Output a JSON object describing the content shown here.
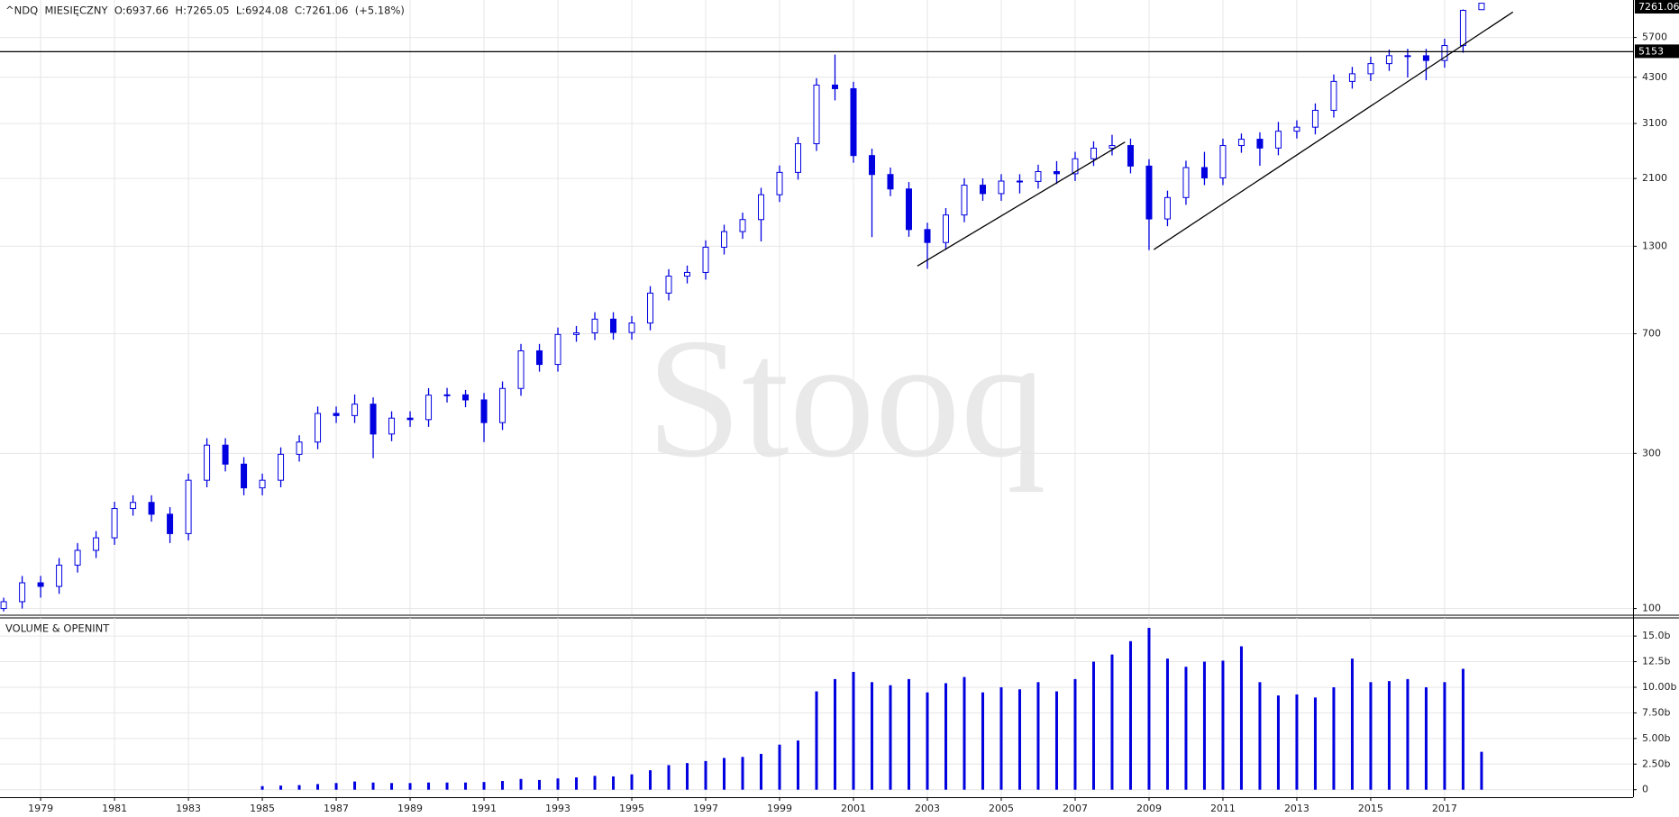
{
  "chart_data": [
    {
      "type": "candlestick",
      "title": "^NDQ  MIESIĘCZNY  O:6937.66  H:7265.05  L:6924.08  C:7261.06  (+5.18%)",
      "watermark": "Stooq",
      "color": "#0000e0",
      "log_scale": true,
      "grid": true,
      "x": [
        1978,
        1978.5,
        1979,
        1979.5,
        1980,
        1980.5,
        1981,
        1981.5,
        1982,
        1982.5,
        1983,
        1983.5,
        1984,
        1984.5,
        1985,
        1985.5,
        1986,
        1986.5,
        1987,
        1987.5,
        1988,
        1988.5,
        1989,
        1989.5,
        1990,
        1990.5,
        1991,
        1991.5,
        1992,
        1992.5,
        1993,
        1993.5,
        1994,
        1994.5,
        1995,
        1995.5,
        1996,
        1996.5,
        1997,
        1997.5,
        1998,
        1998.5,
        1999,
        1999.5,
        2000,
        2000.5,
        2001,
        2001.5,
        2002,
        2002.5,
        2003,
        2003.5,
        2004,
        2004.5,
        2005,
        2005.5,
        2006,
        2006.5,
        2007,
        2007.5,
        2008,
        2008.5,
        2009,
        2009.5,
        2010,
        2010.5,
        2011,
        2011.5,
        2012,
        2012.5,
        2013,
        2013.5,
        2014,
        2014.5,
        2015,
        2015.5,
        2016,
        2016.5,
        2017,
        2017.5,
        2018
      ],
      "open": [
        100,
        105,
        120,
        117,
        136,
        151,
        165,
        203,
        212,
        195,
        170,
        248,
        318,
        278,
        235,
        248,
        298,
        325,
        398,
        392,
        425,
        344,
        385,
        381,
        453,
        454,
        438,
        373,
        475,
        620,
        563,
        696,
        704,
        776,
        706,
        755,
        933,
        1052,
        1080,
        1291,
        1442,
        1570,
        1872,
        2193,
        2686,
        4069,
        3966,
        2470,
        2160,
        1950,
        1463,
        1335,
        1622,
        2003,
        1887,
        2062,
        2057,
        2205,
        2172,
        2415,
        2603,
        2652,
        2293,
        1577,
        1835,
        2269,
        2109,
        2652,
        2773,
        2605,
        2935,
        3020,
        3403,
        4176,
        4408,
        4736,
        5009,
        5007,
        4843,
        5383,
        6937.66
      ],
      "high": [
        108,
        126,
        126,
        143,
        159,
        173,
        213,
        223,
        223,
        205,
        260,
        334,
        334,
        292,
        260,
        313,
        341,
        418,
        418,
        455,
        446,
        404,
        404,
        476,
        477,
        470,
        460,
        499,
        651,
        651,
        731,
        739,
        815,
        815,
        793,
        980,
        1105,
        1134,
        1356,
        1514,
        1649,
        1966,
        2303,
        2820,
        4272,
        5048,
        4164,
        2594,
        2268,
        2048,
        1536,
        1703,
        2103,
        2103,
        2165,
        2165,
        2315,
        2375,
        2536,
        2733,
        2861,
        2785,
        2408,
        1927,
        2382,
        2535,
        2785,
        2887,
        2912,
        3134,
        3171,
        3573,
        4385,
        4628,
        4973,
        5231,
        5259,
        5257,
        5652,
        6950,
        7265.05
      ],
      "low": [
        98,
        100,
        108,
        111,
        129,
        143,
        157,
        193,
        185,
        159,
        162,
        236,
        264,
        223,
        223,
        236,
        283,
        309,
        372,
        372,
        290,
        327,
        362,
        362,
        430,
        416,
        325,
        354,
        451,
        535,
        535,
        661,
        669,
        671,
        671,
        717,
        886,
        999,
        1026,
        1226,
        1370,
        1345,
        1778,
        2083,
        2552,
        3650,
        2347,
        1387,
        1853,
        1390,
        1108,
        1268,
        1541,
        1793,
        1793,
        1889,
        1954,
        2020,
        2063,
        2294,
        2473,
        2178,
        1265,
        1498,
        1743,
        2004,
        2004,
        2520,
        2298,
        2475,
        2788,
        2869,
        3233,
        3967,
        4188,
        4499,
        4292,
        4210,
        4601,
        5114,
        6924.08
      ],
      "close": [
        105,
        120,
        117,
        136,
        151,
        165,
        203,
        212,
        195,
        170,
        248,
        318,
        278,
        235,
        248,
        298,
        325,
        398,
        392,
        425,
        344,
        385,
        381,
        453,
        454,
        438,
        373,
        475,
        620,
        563,
        696,
        704,
        776,
        706,
        755,
        933,
        1052,
        1080,
        1291,
        1442,
        1570,
        1872,
        2193,
        2686,
        4069,
        3966,
        2470,
        2160,
        1950,
        1463,
        1335,
        1622,
        2003,
        1887,
        2062,
        2057,
        2205,
        2172,
        2415,
        2603,
        2652,
        2293,
        1577,
        1835,
        2269,
        2109,
        2652,
        2773,
        2605,
        2935,
        3020,
        3403,
        4176,
        4408,
        4736,
        5009,
        5007,
        4843,
        5383,
        6903,
        7261.06
      ],
      "xlim": [
        1977.9,
        2022.1
      ],
      "ylim": [
        96,
        7430
      ],
      "yticks": [
        100,
        300,
        700,
        1300,
        2100,
        3100,
        4300,
        5700
      ],
      "hlines": [
        5153
      ],
      "trendlines": [
        {
          "x": [
            2002.73,
            2008.35
          ],
          "y": [
            1130,
            2718
          ]
        },
        {
          "x": [
            2009.13,
            2018.85
          ],
          "y": [
            1270,
            6825
          ]
        }
      ]
    },
    {
      "type": "bar",
      "title": "VOLUME & OPENINT",
      "color": "#0000e0",
      "grid": true,
      "x": [
        1978,
        1978.5,
        1979,
        1979.5,
        1980,
        1980.5,
        1981,
        1981.5,
        1982,
        1982.5,
        1983,
        1983.5,
        1984,
        1984.5,
        1985,
        1985.5,
        1986,
        1986.5,
        1987,
        1987.5,
        1988,
        1988.5,
        1989,
        1989.5,
        1990,
        1990.5,
        1991,
        1991.5,
        1992,
        1992.5,
        1993,
        1993.5,
        1994,
        1994.5,
        1995,
        1995.5,
        1996,
        1996.5,
        1997,
        1997.5,
        1998,
        1998.5,
        1999,
        1999.5,
        2000,
        2000.5,
        2001,
        2001.5,
        2002,
        2002.5,
        2003,
        2003.5,
        2004,
        2004.5,
        2005,
        2005.5,
        2006,
        2006.5,
        2007,
        2007.5,
        2008,
        2008.5,
        2009,
        2009.5,
        2010,
        2010.5,
        2011,
        2011.5,
        2012,
        2012.5,
        2013,
        2013.5,
        2014,
        2014.5,
        2015,
        2015.5,
        2016,
        2016.5,
        2017,
        2017.5,
        2018
      ],
      "values": [
        null,
        null,
        null,
        null,
        null,
        null,
        null,
        null,
        null,
        null,
        null,
        null,
        null,
        null,
        350000000.0,
        400000000.0,
        450000000.0,
        550000000.0,
        650000000.0,
        800000000.0,
        700000000.0,
        650000000.0,
        650000000.0,
        700000000.0,
        700000000.0,
        700000000.0,
        750000000.0,
        850000000.0,
        1050000000.0,
        950000000.0,
        1100000000.0,
        1200000000.0,
        1350000000.0,
        1300000000.0,
        1500000000.0,
        1900000000.0,
        2400000000.0,
        2600000000.0,
        2800000000.0,
        3100000000.0,
        3200000000.0,
        3500000000.0,
        4400000000.0,
        4800000000.0,
        9600000000.0,
        10800000000.0,
        11500000000.0,
        10500000000.0,
        10200000000.0,
        10800000000.0,
        9500000000.0,
        10400000000.0,
        11000000000.0,
        9500000000.0,
        10000000000.0,
        9800000000.0,
        10500000000.0,
        9600000000.0,
        10800000000.0,
        12500000000.0,
        13200000000.0,
        14500000000.0,
        15800000000.0,
        12800000000.0,
        12000000000.0,
        12500000000.0,
        12600000000.0,
        14000000000.0,
        10500000000.0,
        9200000000.0,
        9300000000.0,
        9000000000.0,
        10000000000.0,
        12800000000.0,
        10500000000.0,
        10600000000.0,
        10800000000.0,
        10000000000.0,
        10500000000.0,
        11800000000.0,
        3700000000.0
      ],
      "xlim": [
        1977.9,
        2022.1
      ],
      "ylim": [
        -730000000,
        16770000000
      ],
      "xticks": [
        1979,
        1981,
        1983,
        1985,
        1987,
        1989,
        1991,
        1993,
        1995,
        1997,
        1999,
        2001,
        2003,
        2005,
        2007,
        2009,
        2011,
        2013,
        2015,
        2017
      ],
      "yticks": [
        0,
        {
          "value": 2500000000,
          "label": "2.50b"
        },
        {
          "value": 5000000000,
          "label": "5.00b"
        },
        {
          "value": 7500000000,
          "label": "7.50b"
        },
        {
          "value": 10000000000,
          "label": "10.00b"
        },
        {
          "value": 12500000000,
          "label": "12.5b"
        },
        {
          "value": 15000000000,
          "label": "15.0b"
        }
      ]
    }
  ]
}
